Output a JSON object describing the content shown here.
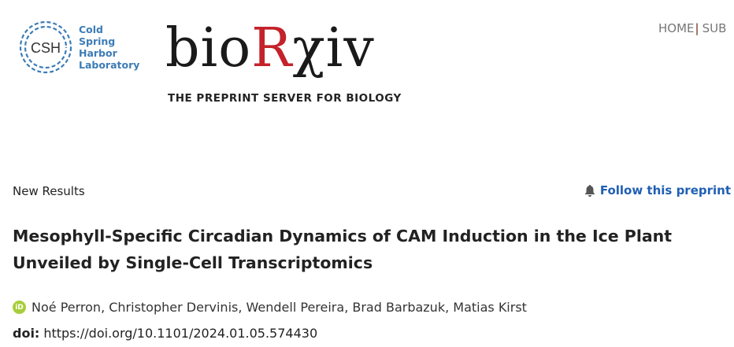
{
  "header": {
    "csh_logo": {
      "monogram": "CSH",
      "lines": [
        "Cold",
        "Spring",
        "Harbor",
        "Laboratory"
      ]
    },
    "biorxiv_logo": {
      "text_black_1": "bio",
      "text_red": "R",
      "text_black_2": "χiv",
      "tagline": "THE PREPRINT SERVER FOR BIOLOGY"
    },
    "nav": {
      "home": "HOME",
      "separator": "|",
      "submit": "SUB"
    }
  },
  "article": {
    "type": "New Results",
    "follow_label": "Follow this preprint",
    "title": "Mesophyll-Specific Circadian Dynamics of CAM Induction in the Ice Plant Unveiled by Single-Cell Transcriptomics",
    "orcid_icon": "iD",
    "authors": "Noé Perron, Christopher Dervinis, Wendell Pereira, Brad Barbazuk, Matias Kirst",
    "doi_label": "doi:",
    "doi_value": "https://doi.org/10.1101/2024.01.05.574430"
  },
  "colors": {
    "csh_blue": "#3c7cb6",
    "biorxiv_red": "#c4222b",
    "link_blue": "#1f5fb4",
    "orcid_green": "#a6ce39"
  }
}
